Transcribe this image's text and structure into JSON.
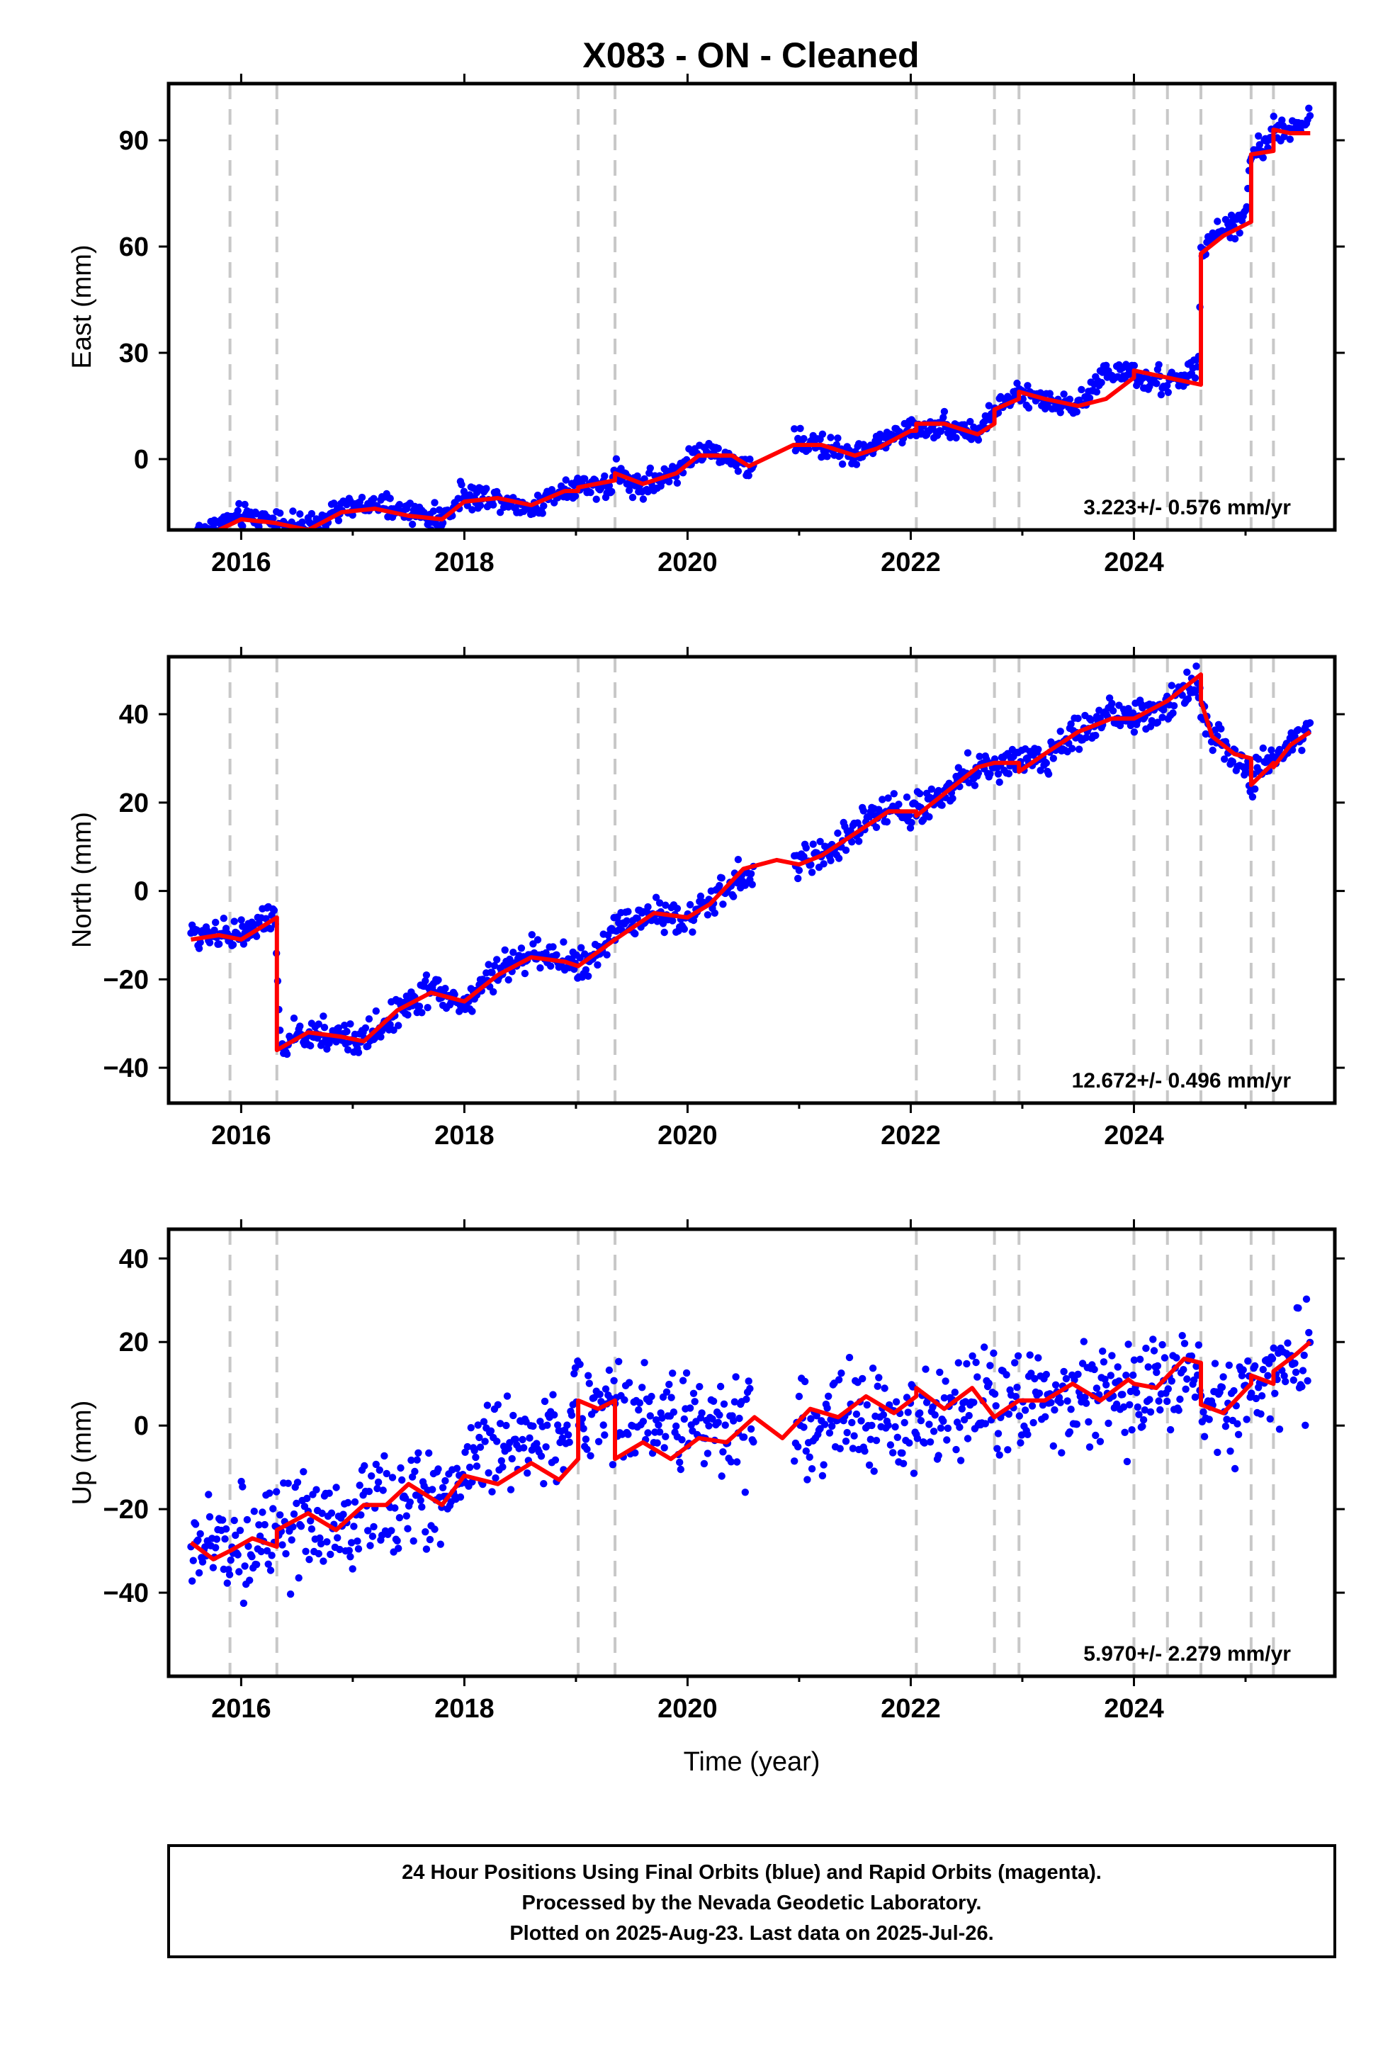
{
  "title": "X083  - ON - Cleaned",
  "colors": {
    "points": "#0000ff",
    "model": "#ff0000",
    "event_lines": "#c8c8c8",
    "frame": "#000000"
  },
  "chart_data": [
    {
      "type": "scatter",
      "panel": "east",
      "ylabel": "East (mm)",
      "xlabel": "",
      "xlim": [
        2015.35,
        2025.8
      ],
      "ylim": [
        -20,
        106
      ],
      "xticks": [
        2016,
        2018,
        2020,
        2022,
        2024
      ],
      "xtick_labels": [
        "2016",
        "2018",
        "2020",
        "2022",
        "2024"
      ],
      "yticks": [
        0,
        30,
        60,
        90
      ],
      "ytick_labels": [
        "0",
        "30",
        "60",
        "90"
      ],
      "rate_label": "3.223+/- 0.576 mm/yr",
      "event_lines": [
        2015.9,
        2016.32,
        2019.02,
        2019.35,
        2022.05,
        2022.75,
        2022.97,
        2024.0,
        2024.3,
        2024.6,
        2025.05,
        2025.25
      ],
      "series": [
        {
          "kind": "points",
          "spread": 1.6,
          "x": [
            2015.55,
            2015.8,
            2016.0,
            2016.3,
            2016.6,
            2016.9,
            2017.2,
            2017.5,
            2017.8,
            2018.0,
            2018.3,
            2018.6,
            2018.9,
            2019.1,
            2019.3,
            2019.35,
            2019.6,
            2019.9,
            2020.1,
            2020.4,
            2020.55,
            2020.95,
            2021.2,
            2021.5,
            2021.7,
            2022.0,
            2022.05,
            2022.3,
            2022.6,
            2022.75,
            2022.97,
            2023.2,
            2023.5,
            2023.75,
            2024.0,
            2024.3,
            2024.58,
            2024.6,
            2024.8,
            2025.0,
            2025.05,
            2025.2,
            2025.25,
            2025.4,
            2025.58
          ],
          "y": [
            -22,
            -18,
            -16,
            -17,
            -20,
            -14,
            -13,
            -15,
            -17,
            -10,
            -11,
            -14,
            -8,
            -7,
            -8,
            -4,
            -8,
            -3,
            2,
            0,
            -3,
            5,
            4,
            1,
            4,
            9,
            8,
            10,
            7,
            14,
            18,
            17,
            15,
            25,
            23,
            21,
            26,
            58,
            65,
            68,
            87,
            88,
            94,
            92,
            96
          ]
        },
        {
          "kind": "model",
          "x": [
            2015.55,
            2015.8,
            2016.0,
            2016.3,
            2016.6,
            2016.9,
            2017.2,
            2017.5,
            2017.8,
            2018.0,
            2018.3,
            2018.6,
            2018.9,
            2019.02,
            2019.02,
            2019.35,
            2019.35,
            2019.6,
            2019.9,
            2020.1,
            2020.4,
            2020.55,
            2020.75,
            2020.95,
            2021.2,
            2021.5,
            2021.7,
            2022.0,
            2022.05,
            2022.05,
            2022.3,
            2022.6,
            2022.75,
            2022.75,
            2022.97,
            2022.97,
            2023.2,
            2023.5,
            2023.75,
            2024.0,
            2024.0,
            2024.3,
            2024.6,
            2024.6,
            2024.8,
            2025.05,
            2025.05,
            2025.25,
            2025.25,
            2025.4,
            2025.58
          ],
          "y": [
            -23,
            -20,
            -17,
            -18,
            -20,
            -15,
            -14,
            -16,
            -17,
            -12,
            -11,
            -13,
            -9,
            -9,
            -8,
            -6,
            -4,
            -7,
            -4,
            1,
            1,
            -2,
            1,
            4,
            4,
            1,
            3,
            8,
            8,
            10,
            10,
            7,
            10,
            14,
            17,
            19,
            17,
            15,
            17,
            23,
            25,
            23,
            21,
            58,
            63,
            67,
            86,
            87,
            93,
            92,
            92
          ]
        }
      ]
    },
    {
      "type": "scatter",
      "panel": "north",
      "ylabel": "North (mm)",
      "xlabel": "",
      "xlim": [
        2015.35,
        2025.8
      ],
      "ylim": [
        -48,
        53
      ],
      "xticks": [
        2016,
        2018,
        2020,
        2022,
        2024
      ],
      "xtick_labels": [
        "2016",
        "2018",
        "2020",
        "2022",
        "2024"
      ],
      "yticks": [
        -40,
        -20,
        0,
        20,
        40
      ],
      "ytick_labels": [
        "−40",
        "−20",
        "0",
        "20",
        "40"
      ],
      "rate_label": "12.672+/- 0.496 mm/yr",
      "event_lines": [
        2015.9,
        2016.32,
        2019.02,
        2019.35,
        2022.05,
        2022.75,
        2022.97,
        2024.0,
        2024.3,
        2024.6,
        2025.05,
        2025.25
      ],
      "series": [
        {
          "kind": "points",
          "spread": 1.8,
          "x": [
            2015.55,
            2015.8,
            2016.0,
            2016.3,
            2016.35,
            2016.6,
            2016.9,
            2017.1,
            2017.4,
            2017.7,
            2018.0,
            2018.3,
            2018.6,
            2018.9,
            2019.1,
            2019.4,
            2019.7,
            2020.0,
            2020.2,
            2020.4,
            2020.95,
            2021.2,
            2021.5,
            2021.8,
            2022.0,
            2022.3,
            2022.6,
            2022.9,
            2023.2,
            2023.5,
            2023.8,
            2024.0,
            2024.3,
            2024.55,
            2024.7,
            2024.9,
            2025.05,
            2025.2,
            2025.4,
            2025.58
          ],
          "y": [
            -10,
            -9,
            -10,
            -6,
            -35,
            -32,
            -33,
            -34,
            -27,
            -22,
            -26,
            -18,
            -14,
            -16,
            -17,
            -8,
            -5,
            -6,
            -3,
            2,
            6,
            8,
            14,
            19,
            18,
            22,
            28,
            29,
            30,
            36,
            40,
            39,
            42,
            48,
            35,
            30,
            25,
            29,
            33,
            36
          ]
        },
        {
          "kind": "model",
          "x": [
            2015.55,
            2015.8,
            2016.0,
            2016.32,
            2016.32,
            2016.6,
            2016.9,
            2017.1,
            2017.4,
            2017.7,
            2018.0,
            2018.3,
            2018.6,
            2018.9,
            2019.02,
            2019.35,
            2019.7,
            2020.0,
            2020.2,
            2020.5,
            2020.8,
            2021.0,
            2021.2,
            2021.5,
            2021.8,
            2022.05,
            2022.05,
            2022.3,
            2022.6,
            2022.75,
            2022.97,
            2022.97,
            2023.2,
            2023.5,
            2023.8,
            2024.0,
            2024.3,
            2024.6,
            2024.6,
            2024.7,
            2024.9,
            2025.05,
            2025.05,
            2025.25,
            2025.25,
            2025.4,
            2025.58
          ],
          "y": [
            -11,
            -10,
            -11,
            -6,
            -36,
            -32,
            -33,
            -34,
            -27,
            -23,
            -25,
            -19,
            -15,
            -16,
            -17,
            -11,
            -5,
            -6,
            -3,
            5,
            7,
            6,
            8,
            13,
            18,
            18,
            17,
            22,
            28,
            29,
            29,
            27,
            31,
            36,
            39,
            39,
            43,
            49,
            43,
            35,
            31,
            30,
            24,
            29,
            28,
            33,
            36
          ]
        }
      ]
    },
    {
      "type": "scatter",
      "panel": "up",
      "ylabel": "Up (mm)",
      "xlabel": "Time (year)",
      "xlim": [
        2015.35,
        2025.8
      ],
      "ylim": [
        -60,
        47
      ],
      "xticks": [
        2016,
        2018,
        2020,
        2022,
        2024
      ],
      "xtick_labels": [
        "2016",
        "2018",
        "2020",
        "2022",
        "2024"
      ],
      "yticks": [
        -40,
        -20,
        0,
        20,
        40
      ],
      "ytick_labels": [
        "−40",
        "−20",
        "0",
        "20",
        "40"
      ],
      "rate_label": "5.970+/- 2.279 mm/yr",
      "event_lines": [
        2015.9,
        2016.32,
        2019.02,
        2019.35,
        2022.05,
        2022.75,
        2022.97,
        2024.0,
        2024.3,
        2024.6,
        2025.05,
        2025.25
      ],
      "series": [
        {
          "kind": "points",
          "spread": 6.0,
          "x": [
            2015.55,
            2015.8,
            2016.0,
            2016.3,
            2016.6,
            2016.9,
            2017.2,
            2017.5,
            2017.8,
            2018.1,
            2018.4,
            2018.7,
            2019.0,
            2019.3,
            2019.6,
            2019.9,
            2020.2,
            2020.5,
            2020.95,
            2021.2,
            2021.5,
            2021.8,
            2022.1,
            2022.4,
            2022.7,
            2023.0,
            2023.3,
            2023.6,
            2023.9,
            2024.2,
            2024.5,
            2024.7,
            2024.9,
            2025.1,
            2025.3,
            2025.58
          ],
          "y": [
            -30,
            -28,
            -27,
            -28,
            -24,
            -25,
            -20,
            -18,
            -17,
            -6,
            -5,
            -2,
            2,
            4,
            3,
            2,
            1,
            0,
            -1,
            -2,
            2,
            0,
            1,
            6,
            6,
            6,
            7,
            8,
            8,
            9,
            10,
            3,
            5,
            9,
            12,
            18
          ]
        },
        {
          "kind": "model",
          "x": [
            2015.55,
            2015.75,
            2015.9,
            2016.1,
            2016.32,
            2016.32,
            2016.6,
            2016.85,
            2017.1,
            2017.3,
            2017.5,
            2017.8,
            2018.0,
            2018.3,
            2018.6,
            2018.85,
            2019.02,
            2019.02,
            2019.2,
            2019.35,
            2019.35,
            2019.6,
            2019.85,
            2020.1,
            2020.35,
            2020.6,
            2020.85,
            2021.1,
            2021.35,
            2021.6,
            2021.85,
            2022.05,
            2022.05,
            2022.3,
            2022.55,
            2022.75,
            2022.8,
            2022.97,
            2023.2,
            2023.45,
            2023.7,
            2023.95,
            2024.0,
            2024.2,
            2024.45,
            2024.6,
            2024.6,
            2024.8,
            2025.05,
            2025.05,
            2025.25,
            2025.25,
            2025.45,
            2025.58
          ],
          "y": [
            -28,
            -32,
            -30,
            -27,
            -29,
            -25,
            -21,
            -25,
            -19,
            -19,
            -14,
            -19,
            -12,
            -14,
            -9,
            -13,
            -8,
            6,
            4,
            6,
            -8,
            -4,
            -8,
            -3,
            -4,
            2,
            -3,
            4,
            2,
            7,
            3,
            7,
            9,
            4,
            9,
            2,
            3,
            6,
            6,
            10,
            6,
            11,
            10,
            9,
            16,
            15,
            5,
            3,
            10,
            12,
            10,
            13,
            17,
            20
          ]
        }
      ]
    }
  ],
  "footer": {
    "line1": "24 Hour Positions Using Final Orbits (blue) and Rapid Orbits (magenta).",
    "line2": "Processed by the Nevada Geodetic Laboratory.",
    "line3": "Plotted on 2025-Aug-23. Last data on 2025-Jul-26."
  }
}
